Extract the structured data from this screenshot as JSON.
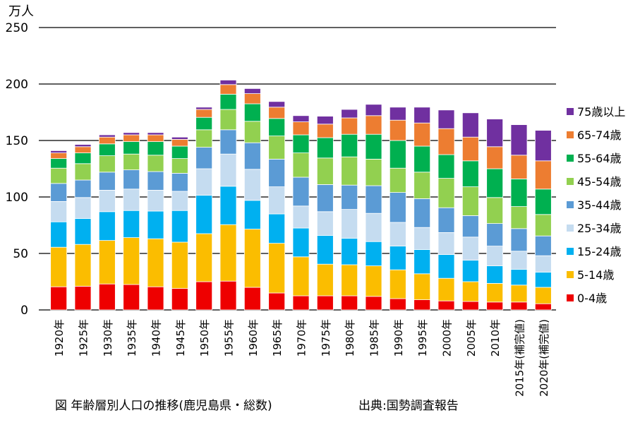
{
  "chart_data": {
    "type": "bar",
    "stacked": true,
    "unit_label": "万人",
    "caption": "図  年齢層別人口の推移(鹿児島県・総数)",
    "source": "出典:国勢調査報告",
    "ylim": [
      0,
      250
    ],
    "y_ticks": [
      0,
      50,
      100,
      150,
      200,
      250
    ],
    "grid": "horizontal",
    "legend_position": "right",
    "categories": [
      "1920年",
      "1925年",
      "1930年",
      "1935年",
      "1940年",
      "1945年",
      "1950年",
      "1955年",
      "1960年",
      "1965年",
      "1970年",
      "1975年",
      "1980年",
      "1985年",
      "1990年",
      "1995年",
      "2000年",
      "2005年",
      "2010年",
      "2015年(補完値)",
      "2020年(補完値)"
    ],
    "series": [
      {
        "name": "0-4歳",
        "color": "#ee0000",
        "values": [
          20.5,
          21,
          23,
          22.5,
          20.5,
          19,
          25,
          25.5,
          20,
          15,
          12.5,
          12.5,
          12.5,
          12,
          10,
          9,
          8,
          7.5,
          7,
          7,
          5.5
        ]
      },
      {
        "name": "5-14歳",
        "color": "#fbbd00",
        "values": [
          35,
          37,
          38.5,
          41.5,
          42.5,
          41,
          42.5,
          50,
          51.5,
          44,
          34.5,
          28,
          27.5,
          27,
          25.5,
          23,
          20,
          17.5,
          16.5,
          15,
          14.5
        ]
      },
      {
        "name": "15-24歳",
        "color": "#00b0f0",
        "values": [
          22.5,
          23,
          25.5,
          24,
          24.5,
          28,
          34,
          34,
          25.5,
          26,
          25.5,
          25.5,
          23.5,
          21.5,
          21,
          21.5,
          21,
          19,
          15.5,
          14,
          13.5
        ]
      },
      {
        "name": "25-34歳",
        "color": "#c5dcf0",
        "values": [
          18,
          18.5,
          19,
          19,
          18.5,
          17,
          23.5,
          28.5,
          27.5,
          24,
          19.5,
          21,
          25.5,
          25,
          21,
          19.5,
          19.5,
          20.5,
          17.5,
          16,
          14.5
        ]
      },
      {
        "name": "35-44歳",
        "color": "#5b9bd5",
        "values": [
          16,
          15.5,
          16,
          17,
          16.5,
          16,
          19,
          21.5,
          23.5,
          24.5,
          25.5,
          24,
          21.5,
          24.5,
          26.5,
          25.5,
          22,
          19,
          20,
          20,
          17.5
        ]
      },
      {
        "name": "45-54歳",
        "color": "#92d050",
        "values": [
          13.5,
          14.5,
          14.5,
          14,
          14.5,
          13,
          15.5,
          18,
          19,
          20.5,
          21.5,
          23.5,
          25,
          23.5,
          21.5,
          23.5,
          26,
          25.5,
          23,
          19.5,
          19
        ]
      },
      {
        "name": "55-64歳",
        "color": "#00b050",
        "values": [
          8.5,
          9.5,
          10.5,
          11,
          12,
          11,
          11,
          13.5,
          15.5,
          15.5,
          16,
          18,
          20,
          22,
          24.5,
          23,
          21,
          23,
          25.5,
          24.5,
          22.5
        ]
      },
      {
        "name": "65-74歳",
        "color": "#ed7d31",
        "values": [
          5,
          5.5,
          6,
          6,
          6,
          6,
          7,
          8.5,
          9,
          10,
          11.5,
          12,
          14.5,
          16.5,
          18,
          20.5,
          23,
          21,
          19.5,
          21,
          25
        ]
      },
      {
        "name": "75歳以上",
        "color": "#7030a0",
        "values": [
          2,
          2,
          2,
          2,
          2,
          2,
          2,
          4,
          4.5,
          5,
          5.5,
          7,
          7.5,
          10,
          11.5,
          14,
          16.5,
          21.5,
          24.5,
          27,
          27
        ]
      }
    ]
  }
}
